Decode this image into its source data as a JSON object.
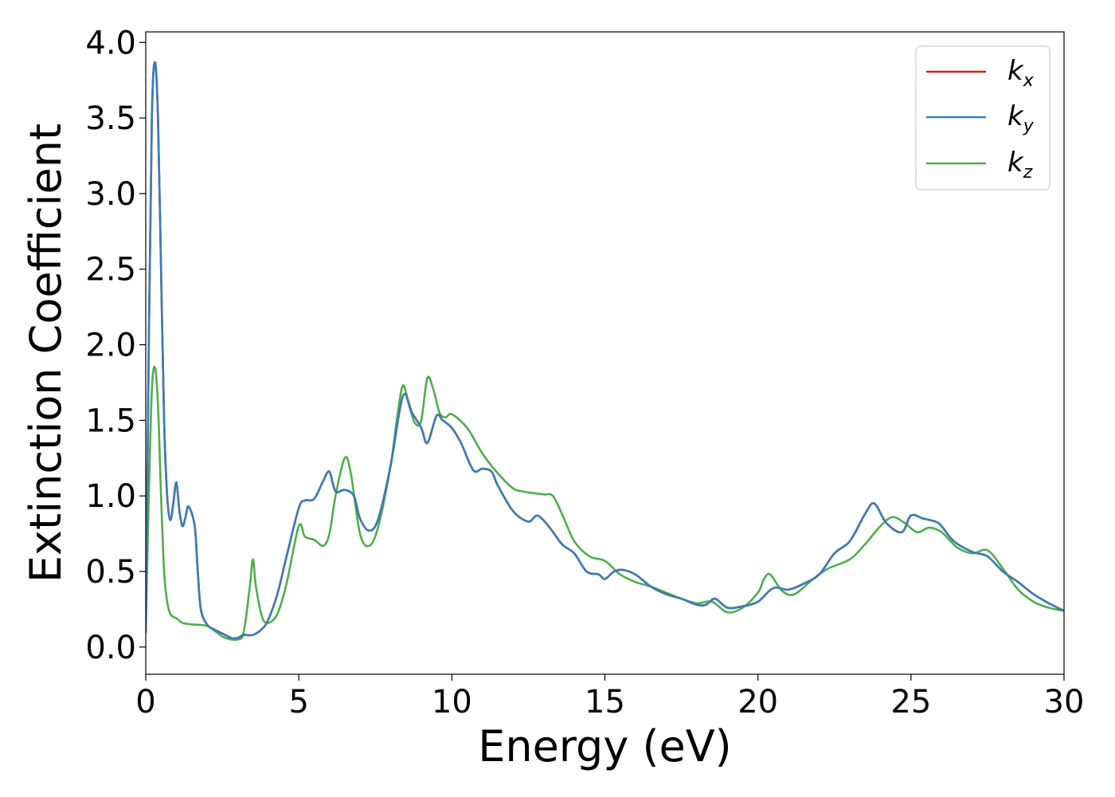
{
  "chart_data": {
    "type": "line",
    "xlabel": "Energy (eV)",
    "ylabel": "Extinction Coefficient",
    "xlim": [
      0,
      30
    ],
    "ylim": [
      -0.18,
      4.07
    ],
    "xticks": [
      0,
      5,
      10,
      15,
      20,
      25,
      30
    ],
    "yticks": [
      0.0,
      0.5,
      1.0,
      1.5,
      2.0,
      2.5,
      3.0,
      3.5,
      4.0
    ],
    "xtick_labels": [
      "0",
      "5",
      "10",
      "15",
      "20",
      "25",
      "30"
    ],
    "ytick_labels": [
      "0.0",
      "0.5",
      "1.0",
      "1.5",
      "2.0",
      "2.5",
      "3.0",
      "3.5",
      "4.0"
    ],
    "grid": false,
    "legend_position": "top-right",
    "series": [
      {
        "key": "kx",
        "name": "k",
        "subscript": "x",
        "color": "#e41a1c",
        "x": [
          0,
          0.1,
          0.2,
          0.3,
          0.4,
          0.5,
          0.6,
          0.7,
          0.8,
          0.9,
          1.0,
          1.1,
          1.2,
          1.3,
          1.4,
          1.6,
          1.7,
          1.8,
          2.0,
          2.2,
          2.5,
          2.8,
          3.0,
          3.2,
          3.5,
          3.8,
          4.0,
          4.3,
          4.6,
          5.0,
          5.2,
          5.5,
          5.8,
          6.0,
          6.2,
          6.5,
          6.8,
          7.0,
          7.3,
          7.6,
          8.0,
          8.4,
          8.7,
          9.0,
          9.2,
          9.5,
          9.7,
          10.0,
          10.3,
          10.7,
          11.0,
          11.3,
          11.5,
          12.0,
          12.5,
          12.8,
          13.2,
          13.6,
          14.0,
          14.4,
          14.8,
          15.0,
          15.3,
          15.6,
          16.0,
          16.5,
          17.0,
          17.5,
          18.0,
          18.3,
          18.6,
          19.0,
          19.5,
          20.0,
          20.5,
          21.0,
          21.5,
          22.0,
          22.5,
          23.0,
          23.5,
          23.8,
          24.2,
          24.7,
          25.0,
          25.4,
          25.8,
          26.0,
          26.4,
          27.0,
          27.5,
          28.0,
          28.5,
          29.0,
          29.5,
          30.0
        ],
        "y": [
          0.1,
          2.0,
          3.5,
          3.87,
          3.5,
          2.5,
          1.5,
          1.0,
          0.84,
          0.95,
          1.09,
          0.9,
          0.8,
          0.86,
          0.93,
          0.8,
          0.5,
          0.25,
          0.15,
          0.12,
          0.09,
          0.06,
          0.06,
          0.08,
          0.08,
          0.12,
          0.18,
          0.35,
          0.6,
          0.92,
          0.97,
          0.98,
          1.1,
          1.16,
          1.03,
          1.04,
          1.0,
          0.85,
          0.77,
          0.85,
          1.2,
          1.66,
          1.55,
          1.45,
          1.35,
          1.53,
          1.5,
          1.45,
          1.35,
          1.17,
          1.18,
          1.16,
          1.07,
          0.9,
          0.83,
          0.87,
          0.79,
          0.68,
          0.62,
          0.5,
          0.48,
          0.45,
          0.5,
          0.51,
          0.48,
          0.4,
          0.35,
          0.32,
          0.28,
          0.28,
          0.32,
          0.26,
          0.27,
          0.3,
          0.39,
          0.38,
          0.42,
          0.48,
          0.62,
          0.7,
          0.88,
          0.95,
          0.82,
          0.76,
          0.87,
          0.85,
          0.83,
          0.8,
          0.7,
          0.63,
          0.6,
          0.5,
          0.43,
          0.35,
          0.29,
          0.24
        ]
      },
      {
        "key": "ky",
        "name": "k",
        "subscript": "y",
        "color": "#377eb8",
        "x": [
          0,
          0.1,
          0.2,
          0.3,
          0.4,
          0.5,
          0.6,
          0.7,
          0.8,
          0.9,
          1.0,
          1.1,
          1.2,
          1.3,
          1.4,
          1.6,
          1.7,
          1.8,
          2.0,
          2.2,
          2.5,
          2.8,
          3.0,
          3.2,
          3.5,
          3.8,
          4.0,
          4.3,
          4.6,
          5.0,
          5.2,
          5.5,
          5.8,
          6.0,
          6.2,
          6.5,
          6.8,
          7.0,
          7.3,
          7.6,
          8.0,
          8.4,
          8.7,
          9.0,
          9.2,
          9.5,
          9.7,
          10.0,
          10.3,
          10.7,
          11.0,
          11.3,
          11.5,
          12.0,
          12.5,
          12.8,
          13.2,
          13.6,
          14.0,
          14.4,
          14.8,
          15.0,
          15.3,
          15.6,
          16.0,
          16.5,
          17.0,
          17.5,
          18.0,
          18.3,
          18.6,
          19.0,
          19.5,
          20.0,
          20.5,
          21.0,
          21.5,
          22.0,
          22.5,
          23.0,
          23.5,
          23.8,
          24.2,
          24.7,
          25.0,
          25.4,
          25.8,
          26.0,
          26.4,
          27.0,
          27.5,
          28.0,
          28.5,
          29.0,
          29.5,
          30.0
        ],
        "y": [
          0.1,
          2.0,
          3.5,
          3.87,
          3.5,
          2.5,
          1.5,
          1.0,
          0.84,
          0.95,
          1.09,
          0.9,
          0.8,
          0.86,
          0.93,
          0.8,
          0.5,
          0.25,
          0.15,
          0.12,
          0.09,
          0.06,
          0.06,
          0.08,
          0.08,
          0.12,
          0.18,
          0.35,
          0.6,
          0.92,
          0.97,
          0.98,
          1.1,
          1.16,
          1.03,
          1.04,
          1.0,
          0.85,
          0.77,
          0.85,
          1.2,
          1.66,
          1.55,
          1.45,
          1.35,
          1.53,
          1.5,
          1.45,
          1.35,
          1.17,
          1.18,
          1.16,
          1.07,
          0.9,
          0.83,
          0.87,
          0.79,
          0.68,
          0.62,
          0.5,
          0.48,
          0.45,
          0.5,
          0.51,
          0.48,
          0.4,
          0.35,
          0.32,
          0.28,
          0.28,
          0.32,
          0.26,
          0.27,
          0.3,
          0.39,
          0.38,
          0.42,
          0.48,
          0.62,
          0.7,
          0.88,
          0.95,
          0.82,
          0.76,
          0.87,
          0.85,
          0.83,
          0.8,
          0.7,
          0.63,
          0.6,
          0.5,
          0.43,
          0.35,
          0.29,
          0.24
        ]
      },
      {
        "key": "kz",
        "name": "k",
        "subscript": "z",
        "color": "#4daf4a",
        "x": [
          0,
          0.1,
          0.2,
          0.3,
          0.4,
          0.5,
          0.6,
          0.7,
          0.8,
          0.9,
          1.0,
          1.2,
          1.5,
          2.0,
          2.3,
          2.6,
          3.0,
          3.2,
          3.4,
          3.5,
          3.6,
          3.8,
          4.0,
          4.3,
          4.6,
          5.0,
          5.2,
          5.5,
          5.8,
          6.0,
          6.2,
          6.5,
          6.7,
          7.0,
          7.3,
          7.6,
          8.0,
          8.2,
          8.4,
          8.6,
          8.8,
          9.0,
          9.2,
          9.4,
          9.6,
          9.8,
          10.0,
          10.5,
          11.0,
          11.5,
          12.0,
          12.3,
          12.6,
          13.0,
          13.3,
          13.6,
          14.0,
          14.5,
          15.0,
          15.5,
          16.0,
          16.5,
          17.0,
          17.5,
          18.0,
          18.5,
          19.0,
          19.5,
          20.0,
          20.2,
          20.4,
          20.8,
          21.2,
          21.8,
          22.3,
          23.0,
          23.5,
          24.0,
          24.4,
          24.8,
          25.2,
          25.6,
          26.0,
          26.5,
          27.0,
          27.5,
          28.0,
          28.5,
          29.0,
          29.5,
          30.0
        ],
        "y": [
          0.1,
          1.0,
          1.7,
          1.85,
          1.6,
          1.0,
          0.5,
          0.3,
          0.22,
          0.2,
          0.19,
          0.16,
          0.15,
          0.14,
          0.1,
          0.06,
          0.05,
          0.1,
          0.4,
          0.58,
          0.4,
          0.2,
          0.16,
          0.22,
          0.42,
          0.8,
          0.73,
          0.71,
          0.67,
          0.75,
          1.0,
          1.25,
          1.15,
          0.75,
          0.67,
          0.8,
          1.2,
          1.5,
          1.73,
          1.6,
          1.48,
          1.5,
          1.78,
          1.7,
          1.55,
          1.52,
          1.54,
          1.45,
          1.28,
          1.15,
          1.05,
          1.03,
          1.02,
          1.01,
          1.0,
          0.88,
          0.7,
          0.6,
          0.57,
          0.48,
          0.43,
          0.4,
          0.36,
          0.32,
          0.29,
          0.3,
          0.23,
          0.26,
          0.36,
          0.45,
          0.48,
          0.37,
          0.35,
          0.45,
          0.52,
          0.58,
          0.68,
          0.8,
          0.86,
          0.82,
          0.76,
          0.79,
          0.76,
          0.66,
          0.62,
          0.64,
          0.52,
          0.38,
          0.3,
          0.26,
          0.24
        ]
      }
    ]
  }
}
